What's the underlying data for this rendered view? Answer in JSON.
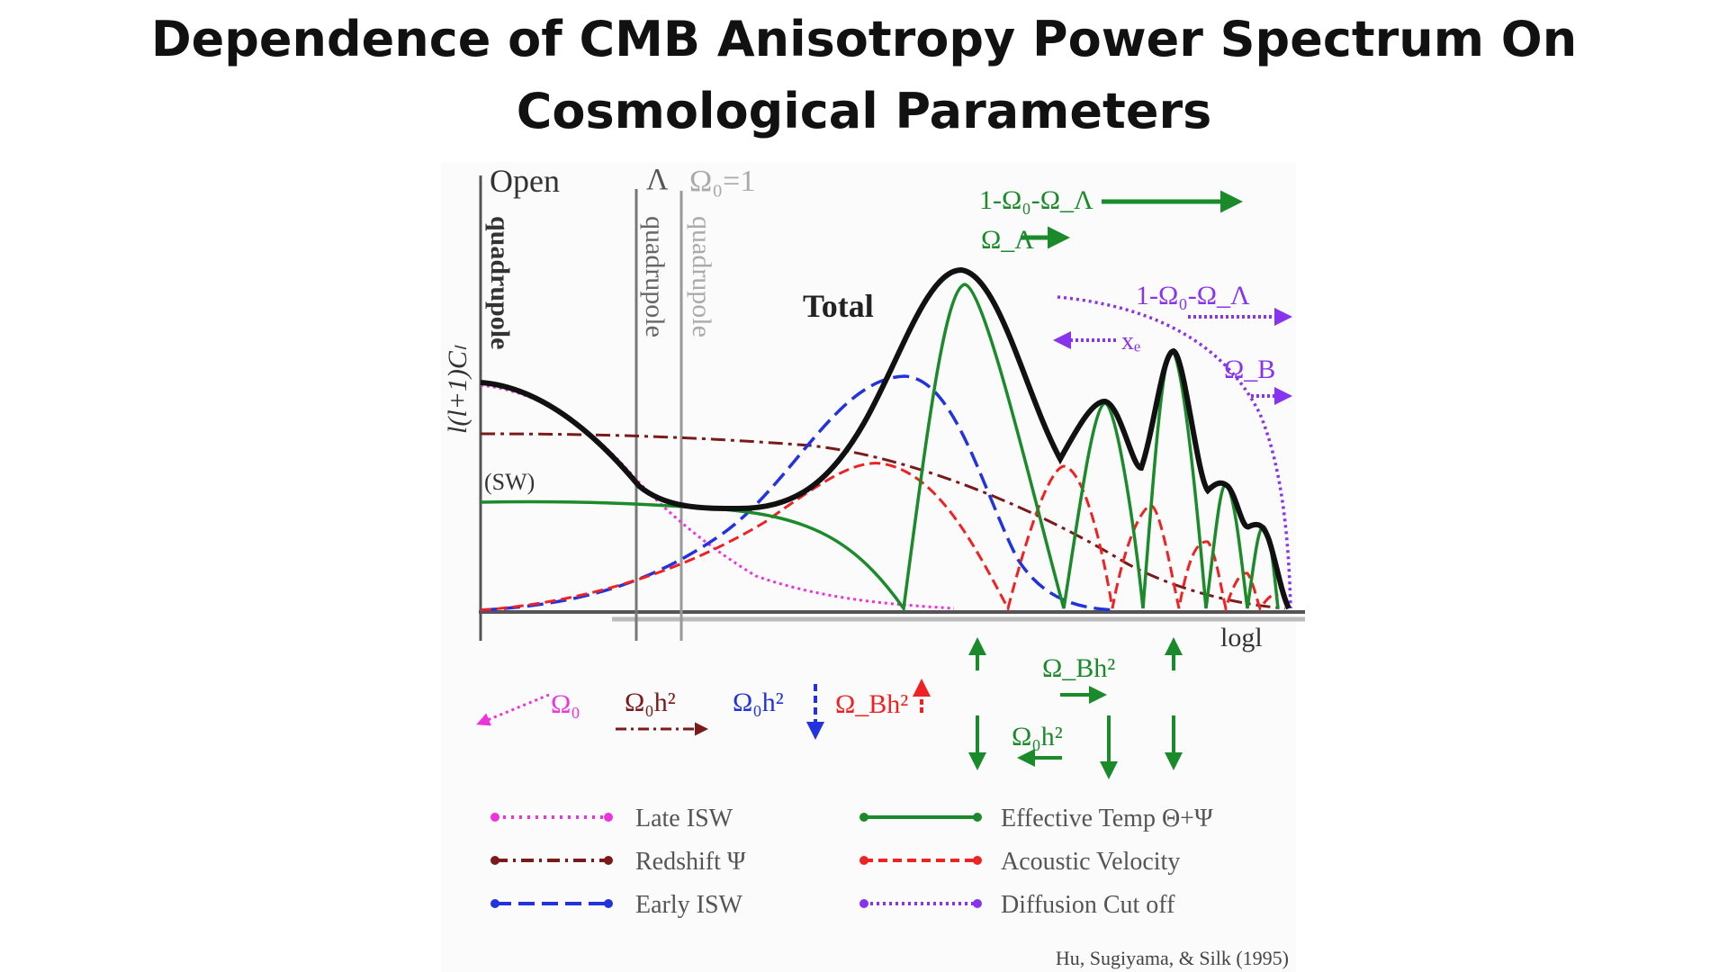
{
  "title_line1": "Dependence of CMB Anisotropy Power Spectrum On",
  "title_line2": "Cosmological Parameters",
  "labels": {
    "open": "Open",
    "lambda": "Λ",
    "omega0_eq_1": "Ω₀=1",
    "quadrupole": "quadrupole",
    "y_axis": "l(l+1)Cₗ",
    "x_axis": "logl",
    "sw": "(SW)",
    "total": "Total"
  },
  "annotations": {
    "omega_curv_top": "1-Ω₀-Ω_Λ",
    "omega_lambda_top": "Ω_Λ",
    "omega_curv_right": "1-Ω₀-Ω_Λ",
    "xe": "xₑ",
    "omega_b_right": "Ω_B",
    "omega0_bottom": "Ω₀",
    "omega0h2_red": "Ω₀h²",
    "omega0h2_blue": "Ω₀h²",
    "omegabh2_red": "Ω_Bh²",
    "omegabh2_green": "Ω_Bh²",
    "omega0h2_green": "Ω₀h²"
  },
  "legend": [
    {
      "label": "Late ISW",
      "color": "#ee33dd",
      "style": "dotted"
    },
    {
      "label": "Redshift Ψ",
      "color": "#7a1a1a",
      "style": "dashdot"
    },
    {
      "label": "Early ISW",
      "color": "#2233dd",
      "style": "dashed"
    },
    {
      "label": "Effective Temp Θ+Ψ",
      "color": "#1a8a2a",
      "style": "solid"
    },
    {
      "label": "Acoustic Velocity",
      "color": "#ee2222",
      "style": "dashed"
    },
    {
      "label": "Diffusion Cut off",
      "color": "#8833ee",
      "style": "dotted"
    }
  ],
  "credit": "Hu, Sugiyama, & Silk (1995)",
  "colors": {
    "total": "#111111",
    "green": "#1a8a2a",
    "blue": "#2233dd",
    "red": "#ee2222",
    "magenta": "#ee33dd",
    "darkred": "#7a1a1a",
    "purple": "#8833ee",
    "gray": "#888888"
  }
}
